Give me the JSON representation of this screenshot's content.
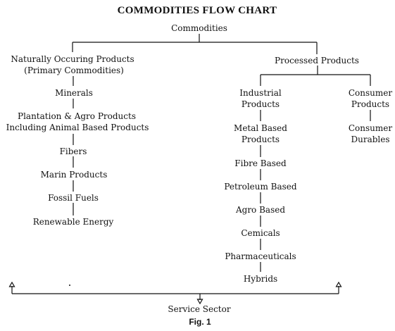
{
  "title": "COMMODITIES FLOW CHART",
  "figure_label": "Fig. 1",
  "root": "Commodities",
  "left_branch": {
    "header_line1": "Naturally Occuring Products",
    "header_line2": "(Primary Commodities)",
    "items": [
      "Minerals",
      "Plantation & Agro Products",
      "Including Animal Based Products",
      "Fibers",
      "Marin Products",
      "Fossil Fuels",
      "Renewable Energy"
    ]
  },
  "right_branch": {
    "header": "Processed Products",
    "industrial": {
      "header_line1": "Industrial",
      "header_line2": "Products",
      "items": [
        "Metal Based",
        "Products",
        "Fibre Based",
        "Petroleum Based",
        "Agro Based",
        "Cemicals",
        "Pharmaceuticals",
        "Hybrids"
      ]
    },
    "consumer": {
      "header_line1": "Consumer",
      "header_line2": "Products",
      "items": [
        "Consumer",
        "Durables"
      ]
    }
  },
  "service": "Service Sector"
}
